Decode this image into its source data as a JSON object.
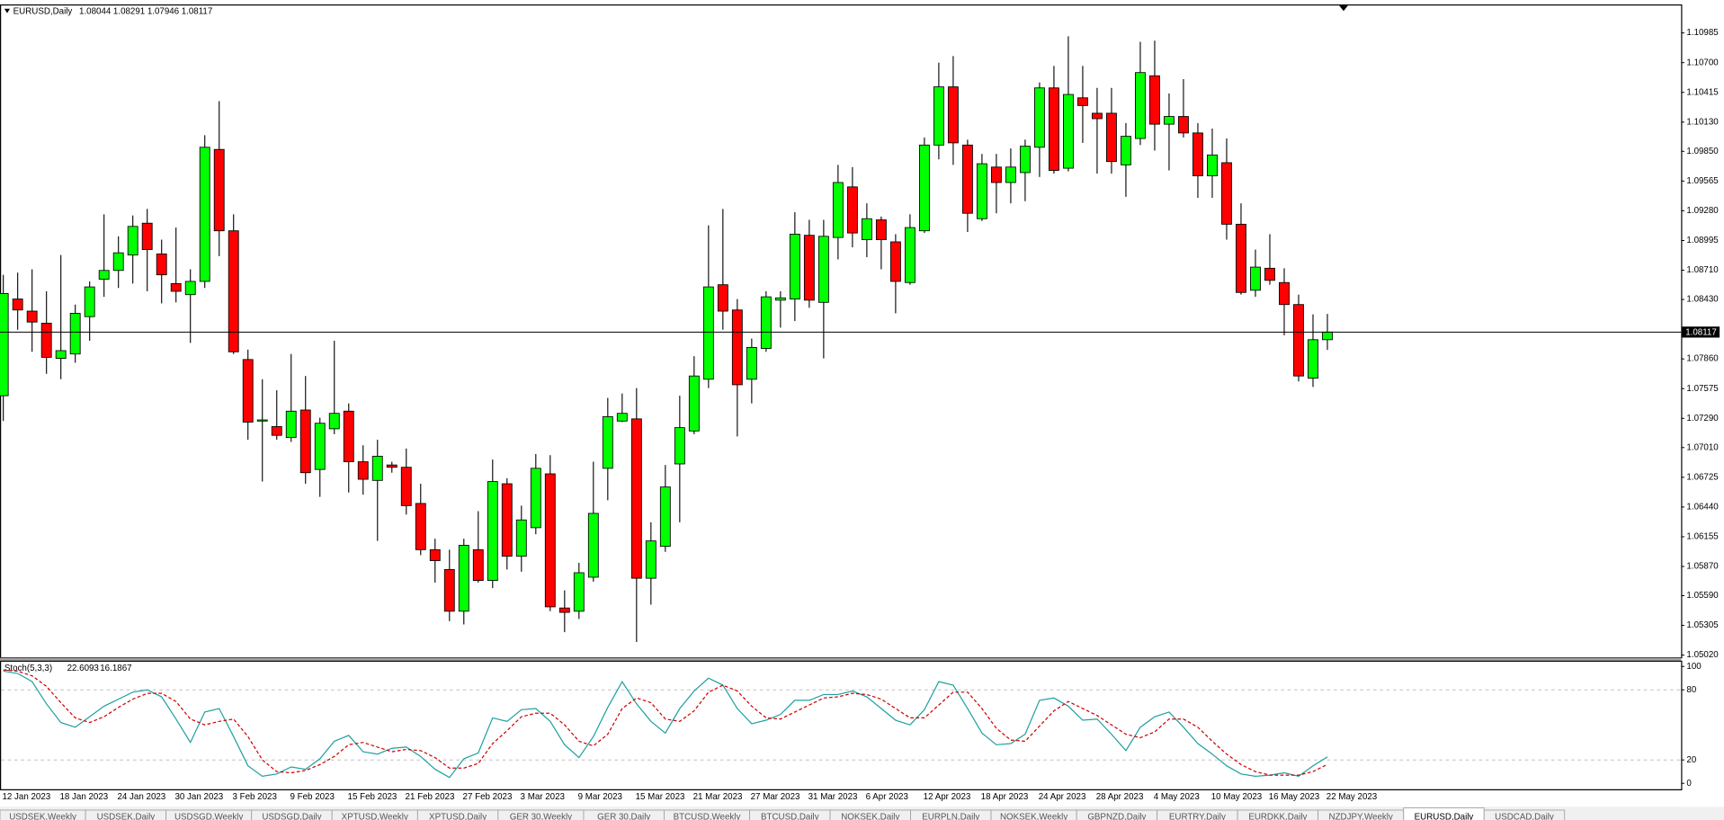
{
  "chart_data": [
    {
      "type": "candlestick",
      "title": "EURUSD,Daily",
      "categories": [
        "12 Jan 2023",
        null,
        null,
        null,
        "18 Jan 2023",
        null,
        null,
        null,
        "24 Jan 2023",
        null,
        null,
        null,
        "30 Jan 2023",
        null,
        null,
        null,
        "3 Feb 2023",
        null,
        null,
        null,
        "9 Feb 2023",
        null,
        null,
        null,
        "15 Feb 2023",
        null,
        null,
        null,
        "21 Feb 2023",
        null,
        null,
        null,
        "27 Feb 2023",
        null,
        null,
        null,
        "3 Mar 2023",
        null,
        null,
        null,
        "9 Mar 2023",
        null,
        null,
        null,
        "15 Mar 2023",
        null,
        null,
        null,
        "21 Mar 2023",
        null,
        null,
        null,
        "27 Mar 2023",
        null,
        null,
        null,
        "31 Mar 2023",
        null,
        null,
        null,
        "6 Apr 2023",
        null,
        null,
        null,
        "12 Apr 2023",
        null,
        null,
        null,
        "18 Apr 2023",
        null,
        null,
        null,
        "24 Apr 2023",
        null,
        null,
        null,
        "28 Apr 2023",
        null,
        null,
        null,
        "4 May 2023",
        null,
        null,
        null,
        "10 May 2023",
        null,
        null,
        null,
        "16 May 2023",
        null,
        null,
        null,
        "22 May 2023"
      ],
      "open": [
        1.07507,
        1.08434,
        1.08318,
        1.08202,
        1.07865,
        1.07907,
        1.08265,
        1.08624,
        1.08708,
        1.08856,
        1.09161,
        1.08866,
        1.08582,
        1.08476,
        1.08603,
        1.09868,
        1.09088,
        1.07854,
        1.07264,
        1.07211,
        1.07106,
        1.0737,
        1.068,
        1.0719,
        1.07359,
        1.06874,
        1.06695,
        1.06843,
        1.06821,
        1.06474,
        1.06031,
        1.05841,
        1.05441,
        1.06031,
        1.05736,
        1.06663,
        1.05968,
        1.06242,
        1.06758,
        1.05472,
        1.05441,
        1.05767,
        1.06811,
        1.07264,
        1.07285,
        1.05757,
        1.06063,
        1.06853,
        1.07169,
        1.07665,
        1.08571,
        1.08329,
        1.07665,
        1.0796,
        1.08423,
        1.08434,
        1.09045,
        1.08402,
        1.09024,
        1.09509,
        1.09003,
        1.09193,
        1.08982,
        1.08592,
        1.09088,
        1.0991,
        1.10468,
        1.0991,
        1.09204,
        1.09699,
        1.09551,
        1.09646,
        1.09889,
        1.10458,
        1.09688,
        1.10363,
        1.10215,
        1.10215,
        1.0972,
        1.09973,
        1.10574,
        1.1011,
        1.10184,
        1.10026,
        1.09615,
        1.09741,
        1.09151,
        1.08518,
        1.08729,
        1.08592,
        1.08381,
        1.07675,
        1.08044
      ],
      "high": [
        1.08666,
        1.08687,
        1.08719,
        1.08508,
        1.08856,
        1.08381,
        1.08603,
        1.09246,
        1.09035,
        1.09235,
        1.09298,
        1.09003,
        1.09119,
        1.08719,
        1.10005,
        1.10331,
        1.09246,
        1.07949,
        1.07665,
        1.07559,
        1.07907,
        1.07696,
        1.07296,
        1.08034,
        1.07433,
        1.07032,
        1.07085,
        1.06874,
        1.07001,
        1.06663,
        1.06136,
        1.06031,
        1.06136,
        1.064,
        1.06895,
        1.06716,
        1.06453,
        1.06948,
        1.06937,
        1.05641,
        1.05905,
        1.06874,
        1.07486,
        1.07528,
        1.0758,
        1.06294,
        1.06843,
        1.07507,
        1.07886,
        1.0914,
        1.09298,
        1.08434,
        1.08055,
        1.08508,
        1.08508,
        1.09267,
        1.09193,
        1.09193,
        1.0972,
        1.09699,
        1.09351,
        1.09225,
        1.09056,
        1.09246,
        1.09983,
        1.107,
        1.10763,
        1.09962,
        1.09825,
        1.09825,
        1.09878,
        1.09962,
        1.1051,
        1.10669,
        1.10953,
        1.10669,
        1.10458,
        1.10458,
        1.10121,
        1.109,
        1.10911,
        1.10405,
        1.10542,
        1.10121,
        1.10068,
        1.09973,
        1.09351,
        1.08908,
        1.09056,
        1.08729,
        1.08476,
        1.08287,
        1.08291
      ],
      "low": [
        1.07264,
        1.08139,
        1.07928,
        1.07717,
        1.07665,
        1.07823,
        1.08034,
        1.08455,
        1.0854,
        1.08582,
        1.08508,
        1.08392,
        1.08402,
        1.08013,
        1.0854,
        1.08845,
        1.07907,
        1.07085,
        1.06684,
        1.07085,
        1.07064,
        1.06663,
        1.06537,
        1.07138,
        1.06579,
        1.06558,
        1.06115,
        1.06769,
        1.06368,
        1.05978,
        1.05715,
        1.05346,
        1.05314,
        1.05715,
        1.05662,
        1.05841,
        1.0582,
        1.06179,
        1.05441,
        1.0524,
        1.05367,
        1.05725,
        1.06505,
        1.07254,
        1.05146,
        1.05504,
        1.0601,
        1.06294,
        1.07138,
        1.0758,
        1.08139,
        1.07117,
        1.07433,
        1.07928,
        1.0816,
        1.08223,
        1.0835,
        1.07865,
        1.08814,
        1.08929,
        1.08835,
        1.08719,
        1.08297,
        1.08571,
        1.09067,
        1.09773,
        1.0972,
        1.09077,
        1.09182,
        1.09256,
        1.09351,
        1.09372,
        1.09604,
        1.09636,
        1.09657,
        1.09931,
        1.09636,
        1.09636,
        1.09414,
        1.0991,
        1.09857,
        1.09667,
        1.09983,
        1.09404,
        1.09404,
        1.09003,
        1.08476,
        1.08455,
        1.08571,
        1.08086,
        1.07644,
        1.07591,
        1.07946
      ],
      "close": [
        1.08487,
        1.08329,
        1.08213,
        1.07875,
        1.07939,
        1.08297,
        1.0855,
        1.08708,
        1.08877,
        1.0913,
        1.08908,
        1.08666,
        1.08508,
        1.08603,
        1.09889,
        1.09088,
        1.07928,
        1.07254,
        1.07275,
        1.07127,
        1.07359,
        1.06769,
        1.07243,
        1.07338,
        1.06874,
        1.06706,
        1.06927,
        1.06821,
        1.06453,
        1.06031,
        1.05926,
        1.05441,
        1.06073,
        1.05736,
        1.06684,
        1.05968,
        1.06316,
        1.06811,
        1.05483,
        1.0543,
        1.0581,
        1.06379,
        1.07306,
        1.07338,
        1.05757,
        1.06115,
        1.06632,
        1.07201,
        1.07696,
        1.0855,
        1.08318,
        1.07612,
        1.0797,
        1.08455,
        1.08445,
        1.09056,
        1.08423,
        1.09035,
        1.09551,
        1.09067,
        1.09204,
        1.09003,
        1.08603,
        1.09119,
        1.0991,
        1.10468,
        1.09931,
        1.09256,
        1.09731,
        1.09551,
        1.09699,
        1.09899,
        1.10458,
        1.09667,
        1.10395,
        1.10289,
        1.10163,
        1.09752,
        1.09994,
        1.10605,
        1.1011,
        1.10184,
        1.10026,
        1.09615,
        1.09815,
        1.09151,
        1.08497,
        1.0874,
        1.08613,
        1.08381,
        1.07696,
        1.08044,
        1.08117
      ],
      "up_color": "#00ff00",
      "down_color": "#ff0000",
      "ylim": [
        1.04999,
        1.11248
      ],
      "yticks": [
        1.10985,
        {
          "value": 1.107,
          "label": "1.10700"
        },
        1.10415,
        {
          "value": 1.1013,
          "label": "1.10130"
        },
        {
          "value": 1.0985,
          "label": "1.09850"
        },
        1.09565,
        {
          "value": 1.0928,
          "label": "1.09280"
        },
        1.08995,
        {
          "value": 1.0871,
          "label": "1.08710"
        },
        {
          "value": 1.0843,
          "label": "1.08430"
        },
        {
          "value": 1.0786,
          "label": "1.07860"
        },
        1.07575,
        {
          "value": 1.0729,
          "label": "1.07290"
        },
        {
          "value": 1.0701,
          "label": "1.07010"
        },
        1.06725,
        {
          "value": 1.0644,
          "label": "1.06440"
        },
        1.06155,
        {
          "value": 1.0587,
          "label": "1.05870"
        },
        {
          "value": 1.0559,
          "label": "1.05590"
        },
        1.05305,
        {
          "value": 1.0502,
          "label": "1.05020"
        }
      ]
    },
    {
      "type": "line",
      "title": "Stoch(5,3,3)",
      "series": [
        {
          "color": "#20a0a0",
          "dash": false,
          "values": [
            96,
            94,
            87,
            68,
            52,
            48,
            57,
            66,
            72,
            78,
            80,
            74,
            55,
            35,
            61,
            64,
            40,
            15,
            6,
            8,
            14,
            12,
            21,
            36,
            41,
            27,
            25,
            30,
            31,
            23,
            12,
            5,
            21,
            26,
            56,
            53,
            63,
            64,
            53,
            33,
            22,
            40,
            65,
            87,
            68,
            53,
            43,
            64,
            79,
            90,
            84,
            64,
            51,
            54,
            59,
            71,
            71,
            76,
            76,
            79,
            74,
            64,
            54,
            50,
            63,
            87,
            84,
            64,
            43,
            33,
            34,
            42,
            71,
            73,
            66,
            54,
            55,
            42,
            28,
            48,
            57,
            61,
            48,
            34,
            25,
            15,
            8,
            6,
            7,
            9,
            6,
            15,
            22.6093
          ]
        },
        {
          "color": "#cc0000",
          "dash": true,
          "values": [
            97,
            96,
            92,
            83,
            69,
            56,
            52,
            57,
            65,
            72,
            77,
            77,
            70,
            55,
            50,
            53,
            55,
            40,
            20,
            10,
            9,
            11,
            16,
            23,
            33,
            35,
            31,
            27,
            29,
            28,
            22,
            13,
            13,
            17,
            34,
            45,
            57,
            60,
            60,
            50,
            36,
            32,
            42,
            64,
            73,
            69,
            55,
            53,
            62,
            78,
            84,
            79,
            66,
            56,
            55,
            61,
            67,
            73,
            74,
            77,
            76,
            72,
            64,
            56,
            56,
            67,
            78,
            78,
            64,
            47,
            37,
            36,
            49,
            62,
            70,
            64,
            58,
            50,
            42,
            39,
            44,
            55,
            55,
            48,
            36,
            25,
            16,
            10,
            7,
            7,
            7,
            10,
            16.1867
          ]
        }
      ],
      "ylim": [
        -6,
        105
      ],
      "yticks": [
        0,
        20,
        80,
        100
      ],
      "level_lines": [
        20,
        80
      ]
    }
  ],
  "tabs": [
    "USDSEK,Weekly",
    "USDSEK,Daily",
    "USDSGD,Weekly",
    "USDSGD,Daily",
    "XPTUSD,Weekly",
    "XPTUSD,Daily",
    "GER 30,Weekly",
    "GER 30,Daily",
    "BTCUSD,Weekly",
    "BTCUSD,Daily",
    "NOKSEK,Daily",
    "EURPLN,Daily",
    "NOKSEK,Weekly",
    "GBPNZD,Daily",
    "EURTRY,Daily",
    "EURDKK,Daily",
    "NZDJPY,Weekly",
    "EURUSD,Daily",
    "USDCAD,Daily"
  ],
  "active_tab": 17
}
